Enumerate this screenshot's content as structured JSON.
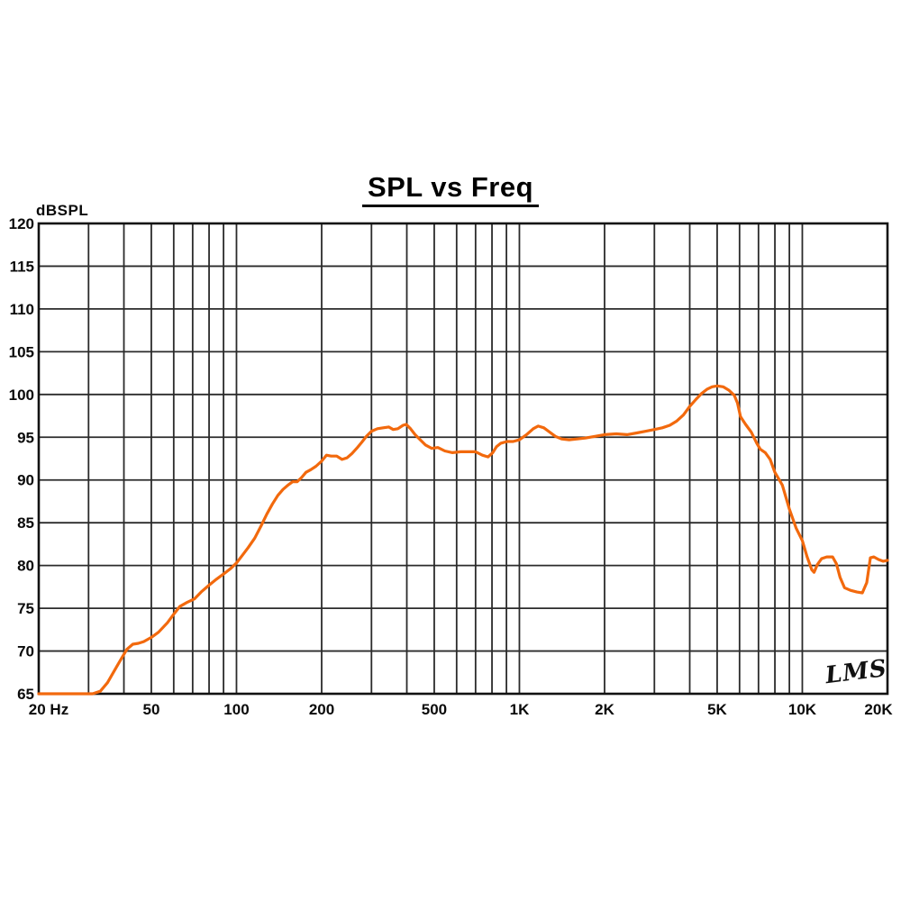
{
  "page": {
    "background": "#ffffff"
  },
  "chart_data": {
    "type": "line",
    "title": "SPL vs Freq",
    "y_axis_label": "dBSPL",
    "xlabel": "",
    "ylabel": "dBSPL",
    "watermark": "LMS",
    "x_scale": "log",
    "grid": true,
    "legend": "none",
    "xlim": [
      20,
      20000
    ],
    "ylim": [
      65,
      120
    ],
    "y_ticks": [
      120,
      115,
      110,
      105,
      100,
      95,
      90,
      85,
      80,
      75,
      70,
      65
    ],
    "x_ticks": [
      {
        "value": 20,
        "label": "20 Hz"
      },
      {
        "value": 50,
        "label": "50"
      },
      {
        "value": 100,
        "label": "100"
      },
      {
        "value": 200,
        "label": "200"
      },
      {
        "value": 500,
        "label": "500"
      },
      {
        "value": 1000,
        "label": "1K"
      },
      {
        "value": 2000,
        "label": "2K"
      },
      {
        "value": 5000,
        "label": "5K"
      },
      {
        "value": 10000,
        "label": "10K"
      },
      {
        "value": 20000,
        "label": "20K"
      }
    ],
    "x_gridlines": [
      20,
      30,
      40,
      50,
      60,
      70,
      80,
      90,
      100,
      200,
      300,
      400,
      500,
      600,
      700,
      800,
      900,
      1000,
      2000,
      3000,
      4000,
      5000,
      6000,
      7000,
      8000,
      9000,
      10000,
      20000
    ],
    "colors": {
      "curve": "#F2690D",
      "grid": "#2B2B2B",
      "frame": "#121212",
      "text": "#0A0A0A",
      "background": "#FFFFFF"
    },
    "series": [
      {
        "name": "SPL",
        "points": [
          [
            20,
            65.0
          ],
          [
            23,
            65.0
          ],
          [
            26,
            65.0
          ],
          [
            29,
            65.0
          ],
          [
            31,
            65.0
          ],
          [
            33,
            65.3
          ],
          [
            35,
            66.3
          ],
          [
            37,
            67.7
          ],
          [
            39,
            69.0
          ],
          [
            41,
            70.2
          ],
          [
            43,
            70.8
          ],
          [
            45,
            70.9
          ],
          [
            47,
            71.1
          ],
          [
            50,
            71.6
          ],
          [
            53,
            72.2
          ],
          [
            57,
            73.3
          ],
          [
            60,
            74.3
          ],
          [
            63,
            75.2
          ],
          [
            67,
            75.7
          ],
          [
            71,
            76.1
          ],
          [
            75,
            76.9
          ],
          [
            80,
            77.7
          ],
          [
            85,
            78.4
          ],
          [
            90,
            79.0
          ],
          [
            95,
            79.6
          ],
          [
            100,
            80.3
          ],
          [
            105,
            81.2
          ],
          [
            110,
            82.1
          ],
          [
            116,
            83.2
          ],
          [
            122,
            84.6
          ],
          [
            128,
            86.0
          ],
          [
            134,
            87.2
          ],
          [
            140,
            88.2
          ],
          [
            146,
            88.9
          ],
          [
            152,
            89.4
          ],
          [
            158,
            89.8
          ],
          [
            164,
            89.8
          ],
          [
            170,
            90.3
          ],
          [
            176,
            90.9
          ],
          [
            183,
            91.2
          ],
          [
            191,
            91.6
          ],
          [
            200,
            92.2
          ],
          [
            208,
            92.9
          ],
          [
            216,
            92.8
          ],
          [
            226,
            92.8
          ],
          [
            236,
            92.4
          ],
          [
            246,
            92.6
          ],
          [
            256,
            93.1
          ],
          [
            266,
            93.7
          ],
          [
            277,
            94.4
          ],
          [
            288,
            95.1
          ],
          [
            300,
            95.7
          ],
          [
            315,
            96.0
          ],
          [
            330,
            96.1
          ],
          [
            345,
            96.2
          ],
          [
            358,
            95.9
          ],
          [
            372,
            96.0
          ],
          [
            388,
            96.4
          ],
          [
            398,
            96.5
          ],
          [
            412,
            96.0
          ],
          [
            428,
            95.3
          ],
          [
            446,
            94.7
          ],
          [
            465,
            94.1
          ],
          [
            490,
            93.7
          ],
          [
            515,
            93.8
          ],
          [
            545,
            93.4
          ],
          [
            580,
            93.2
          ],
          [
            620,
            93.3
          ],
          [
            660,
            93.3
          ],
          [
            700,
            93.3
          ],
          [
            740,
            92.9
          ],
          [
            775,
            92.7
          ],
          [
            805,
            93.2
          ],
          [
            830,
            93.9
          ],
          [
            860,
            94.3
          ],
          [
            905,
            94.5
          ],
          [
            950,
            94.5
          ],
          [
            1000,
            94.7
          ],
          [
            1060,
            95.3
          ],
          [
            1120,
            96.0
          ],
          [
            1165,
            96.3
          ],
          [
            1220,
            96.1
          ],
          [
            1280,
            95.6
          ],
          [
            1340,
            95.1
          ],
          [
            1410,
            94.8
          ],
          [
            1500,
            94.7
          ],
          [
            1600,
            94.8
          ],
          [
            1710,
            94.9
          ],
          [
            1850,
            95.1
          ],
          [
            2000,
            95.3
          ],
          [
            2200,
            95.4
          ],
          [
            2400,
            95.3
          ],
          [
            2600,
            95.5
          ],
          [
            2800,
            95.7
          ],
          [
            3000,
            95.9
          ],
          [
            3200,
            96.1
          ],
          [
            3400,
            96.4
          ],
          [
            3600,
            96.9
          ],
          [
            3800,
            97.6
          ],
          [
            4000,
            98.6
          ],
          [
            4200,
            99.4
          ],
          [
            4400,
            100.1
          ],
          [
            4600,
            100.6
          ],
          [
            4800,
            100.9
          ],
          [
            5000,
            101.0
          ],
          [
            5250,
            100.9
          ],
          [
            5500,
            100.5
          ],
          [
            5750,
            99.9
          ],
          [
            5900,
            99.0
          ],
          [
            6050,
            97.4
          ],
          [
            6300,
            96.5
          ],
          [
            6600,
            95.6
          ],
          [
            6900,
            94.3
          ],
          [
            7100,
            93.6
          ],
          [
            7400,
            93.2
          ],
          [
            7700,
            92.4
          ],
          [
            8000,
            90.9
          ],
          [
            8500,
            89.4
          ],
          [
            9000,
            86.6
          ],
          [
            9500,
            84.4
          ],
          [
            10000,
            82.9
          ],
          [
            10400,
            81.0
          ],
          [
            10800,
            79.5
          ],
          [
            11000,
            79.2
          ],
          [
            11300,
            80.1
          ],
          [
            11700,
            80.8
          ],
          [
            12200,
            81.0
          ],
          [
            12800,
            81.0
          ],
          [
            13200,
            80.2
          ],
          [
            13600,
            78.6
          ],
          [
            14100,
            77.4
          ],
          [
            14800,
            77.1
          ],
          [
            15600,
            76.9
          ],
          [
            16300,
            76.8
          ],
          [
            16900,
            78.0
          ],
          [
            17400,
            80.9
          ],
          [
            17900,
            81.0
          ],
          [
            18600,
            80.7
          ],
          [
            19300,
            80.5
          ],
          [
            20000,
            80.6
          ]
        ]
      }
    ]
  }
}
